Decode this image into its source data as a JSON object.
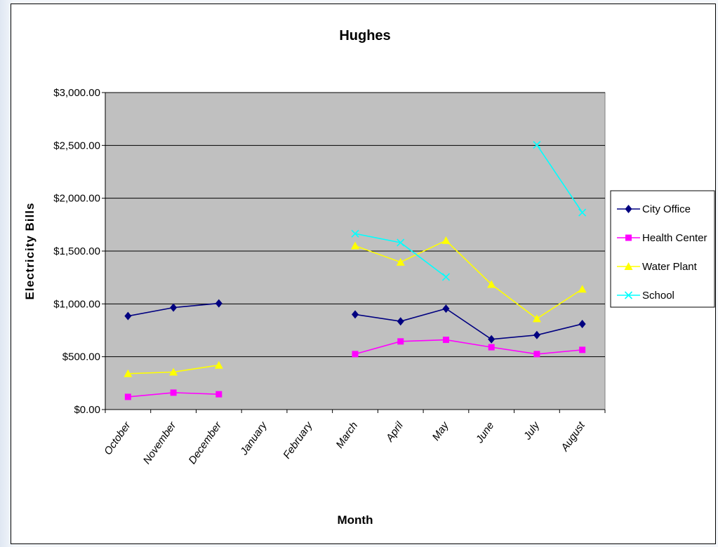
{
  "chart_data": {
    "type": "line",
    "title": "Hughes",
    "xlabel": "Month",
    "ylabel": "Electricity Bills",
    "categories": [
      "October",
      "November",
      "December",
      "January",
      "February",
      "March",
      "April",
      "May",
      "June",
      "July",
      "August"
    ],
    "ylim": [
      0,
      3000
    ],
    "yticks": [
      "$0.00",
      "$500.00",
      "$1,000.00",
      "$1,500.00",
      "$2,000.00",
      "$2,500.00",
      "$3,000.00"
    ],
    "grid": true,
    "legend_position": "right",
    "plot_background": "#c0c0c0",
    "series": [
      {
        "name": "City Office",
        "color": "#000080",
        "marker": "diamond",
        "values": [
          885,
          965,
          1005,
          null,
          null,
          900,
          835,
          955,
          665,
          705,
          810
        ]
      },
      {
        "name": "Health Center",
        "color": "#ff00ff",
        "marker": "square",
        "values": [
          120,
          160,
          145,
          null,
          null,
          525,
          645,
          660,
          590,
          525,
          565
        ]
      },
      {
        "name": "Water Plant",
        "color": "#ffff00",
        "marker": "triangle",
        "values": [
          340,
          355,
          420,
          null,
          null,
          1550,
          1395,
          1600,
          1185,
          860,
          1140
        ]
      },
      {
        "name": "School",
        "color": "#00ffff",
        "marker": "x",
        "values": [
          null,
          null,
          null,
          null,
          null,
          1665,
          1580,
          1255,
          null,
          2505,
          1865
        ]
      }
    ]
  }
}
